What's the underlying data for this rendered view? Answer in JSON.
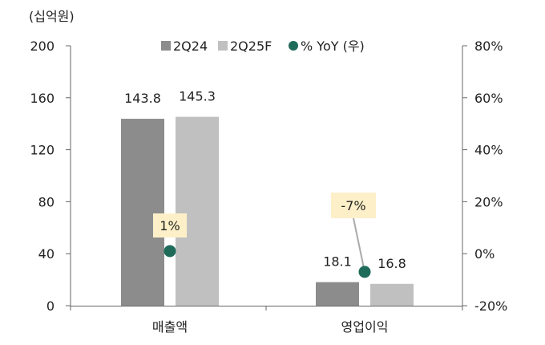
{
  "chart_data": {
    "type": "bar",
    "unit_label": "(십억원)",
    "categories": [
      "매출액",
      "영업이익"
    ],
    "series": [
      {
        "name": "2Q24",
        "axis": "left",
        "color": "#8c8c8c",
        "values": [
          143.8,
          18.1
        ]
      },
      {
        "name": "2Q25F",
        "axis": "left",
        "color": "#c0c0c0",
        "values": [
          145.3,
          16.8
        ]
      },
      {
        "name": "% YoY (우)",
        "axis": "right",
        "type": "scatter",
        "color": "#1e6b5a",
        "values": [
          1,
          -7
        ],
        "labels": [
          "1%",
          "-7%"
        ]
      }
    ],
    "y_left": {
      "min": 0,
      "max": 200,
      "ticks": [
        "0",
        "40",
        "80",
        "120",
        "160",
        "200"
      ]
    },
    "y_right": {
      "min": -20,
      "max": 80,
      "ticks": [
        "-20%",
        "0%",
        "20%",
        "40%",
        "60%",
        "80%"
      ]
    },
    "value_labels": [
      [
        "143.8",
        "18.1"
      ],
      [
        "145.3",
        "16.8"
      ]
    ],
    "legend_position": "top-center",
    "grid": false,
    "annotation_box_color": "#fdf0c8"
  }
}
